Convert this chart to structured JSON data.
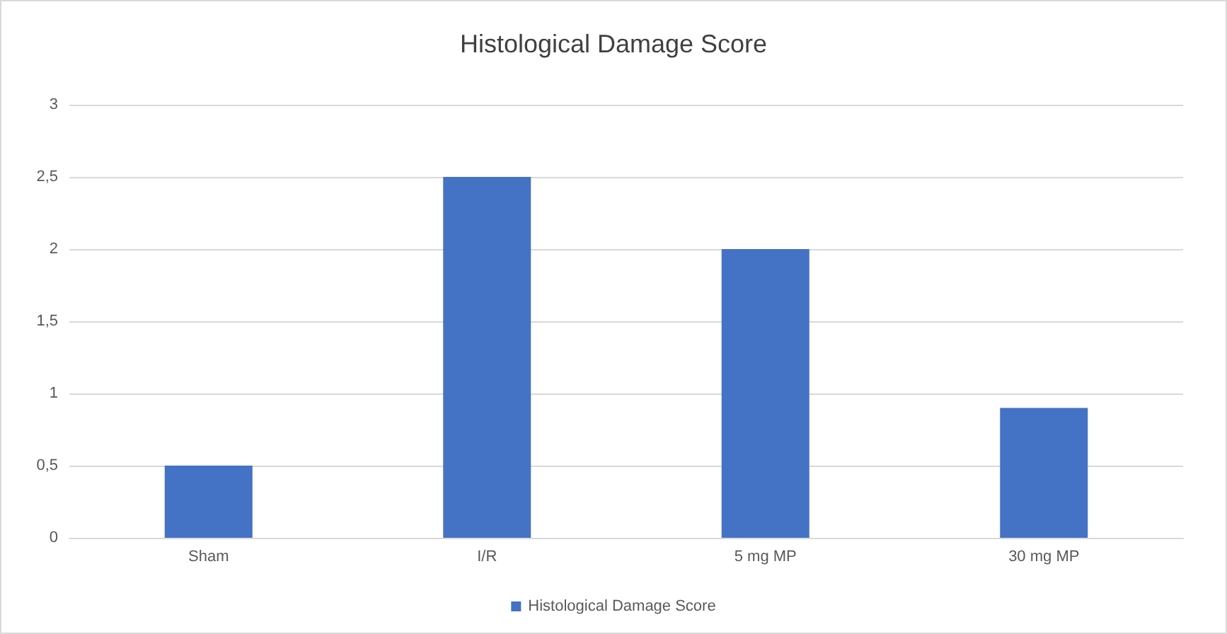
{
  "chart_data": {
    "type": "bar",
    "title": "Histological Damage Score",
    "categories": [
      "Sham",
      "I/R",
      "5 mg MP",
      "30 mg MP"
    ],
    "series": [
      {
        "name": "Histological Damage Score",
        "color": "#4472c4",
        "values": [
          0.5,
          2.5,
          2,
          0.9
        ]
      }
    ],
    "ylim": [
      0,
      3
    ],
    "yticks": [
      0,
      {
        "value": 0.5,
        "label": "0,5"
      },
      1,
      {
        "value": 1.5,
        "label": "1,5"
      },
      2,
      {
        "value": 2.5,
        "label": "2,5"
      },
      3
    ],
    "grid": "y",
    "legend": "bottom"
  }
}
